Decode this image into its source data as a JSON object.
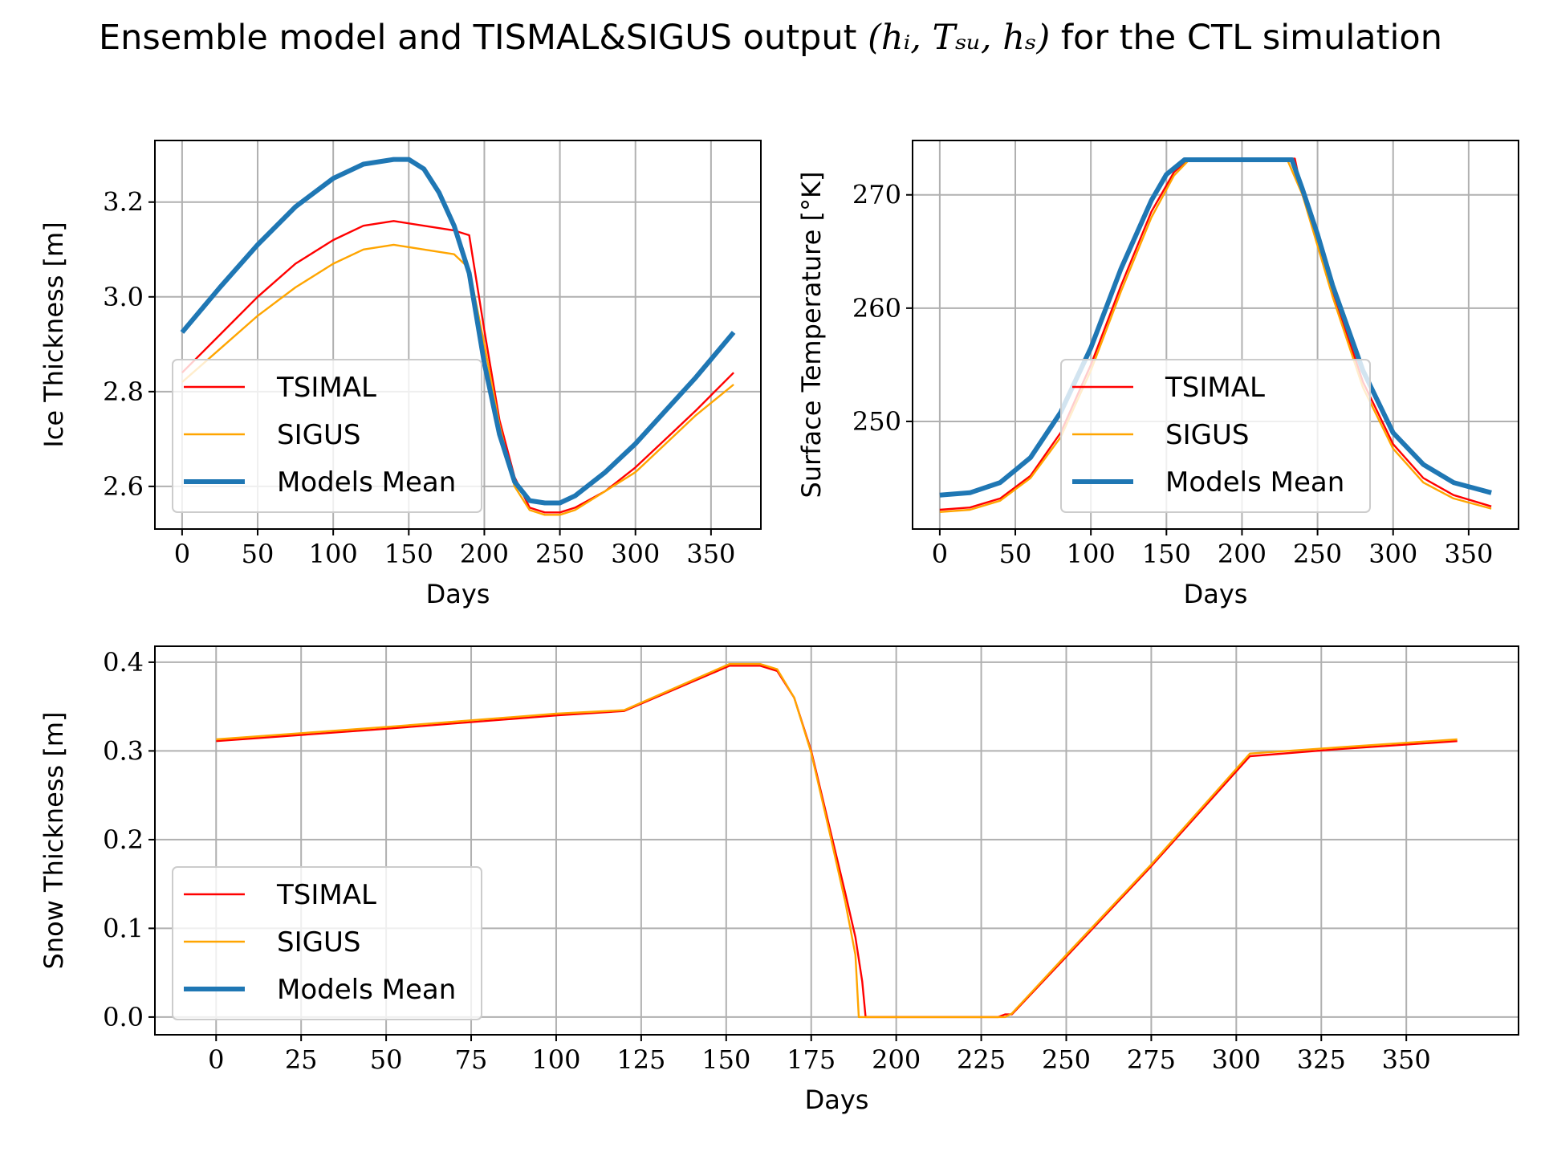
{
  "figure": {
    "title_prefix": "Ensemble model and TISMAL&SIGUS output ",
    "title_math": "(h",
    "title_full_math": "(hᵢ, Tₛᵤ, hₛ)",
    "title_suffix": " for the CTL simulation"
  },
  "colors": {
    "TSIMAL": "#ff0000",
    "SIGUS": "#ffa500",
    "Models Mean": "#1f77b4",
    "grid": "#b0b0b0"
  },
  "legend_labels": [
    "TSIMAL",
    "SIGUS",
    "Models Mean"
  ],
  "chart_data": [
    {
      "type": "line",
      "id": "ice",
      "xlabel": "Days",
      "ylabel": "Ice Thickness [m]",
      "xlim": [
        -18,
        383
      ],
      "ylim": [
        2.51,
        3.33
      ],
      "xticks": [
        0,
        50,
        100,
        150,
        200,
        250,
        300,
        350
      ],
      "yticks": [
        2.6,
        2.8,
        3.0,
        3.2
      ],
      "ytick_labels": [
        "2.6",
        "2.8",
        "3.0",
        "3.2"
      ],
      "grid": true,
      "legend_position": "lower left",
      "series": [
        {
          "name": "TSIMAL",
          "x": [
            0,
            25,
            50,
            75,
            100,
            120,
            140,
            160,
            180,
            190,
            200,
            210,
            220,
            230,
            240,
            250,
            260,
            280,
            300,
            320,
            340,
            365
          ],
          "y": [
            2.84,
            2.92,
            3.0,
            3.07,
            3.12,
            3.15,
            3.16,
            3.15,
            3.14,
            3.13,
            2.93,
            2.74,
            2.62,
            2.555,
            2.545,
            2.545,
            2.555,
            2.59,
            2.64,
            2.7,
            2.76,
            2.84
          ]
        },
        {
          "name": "SIGUS",
          "x": [
            0,
            25,
            50,
            75,
            100,
            120,
            140,
            160,
            180,
            190,
            200,
            210,
            220,
            230,
            240,
            250,
            260,
            280,
            300,
            320,
            340,
            365
          ],
          "y": [
            2.82,
            2.89,
            2.96,
            3.02,
            3.07,
            3.1,
            3.11,
            3.1,
            3.09,
            3.06,
            2.9,
            2.73,
            2.6,
            2.55,
            2.54,
            2.54,
            2.55,
            2.59,
            2.63,
            2.69,
            2.75,
            2.815
          ]
        },
        {
          "name": "Models Mean",
          "x": [
            0,
            25,
            50,
            75,
            100,
            120,
            140,
            150,
            160,
            170,
            180,
            190,
            200,
            210,
            220,
            230,
            240,
            250,
            260,
            280,
            300,
            320,
            340,
            365
          ],
          "y": [
            2.925,
            3.02,
            3.11,
            3.19,
            3.25,
            3.28,
            3.29,
            3.29,
            3.27,
            3.22,
            3.15,
            3.05,
            2.86,
            2.71,
            2.61,
            2.57,
            2.565,
            2.565,
            2.58,
            2.63,
            2.69,
            2.76,
            2.83,
            2.925
          ]
        }
      ]
    },
    {
      "type": "line",
      "id": "temp",
      "xlabel": "Days",
      "ylabel": "Surface Temperature [°K]",
      "xlim": [
        -18,
        383
      ],
      "ylim": [
        240.5,
        274.8
      ],
      "xticks": [
        0,
        50,
        100,
        150,
        200,
        250,
        300,
        350
      ],
      "yticks": [
        250,
        260,
        270
      ],
      "ytick_labels": [
        "250",
        "260",
        "270"
      ],
      "grid": true,
      "legend_position": "lower right",
      "series": [
        {
          "name": "TSIMAL",
          "x": [
            0,
            20,
            40,
            60,
            80,
            100,
            120,
            140,
            155,
            165,
            200,
            235,
            240,
            250,
            260,
            280,
            300,
            320,
            340,
            365
          ],
          "y": [
            242.2,
            242.4,
            243.2,
            245.2,
            249.0,
            255.0,
            262.0,
            268.5,
            272.0,
            273.2,
            273.2,
            273.2,
            270.0,
            266.0,
            261.5,
            253.5,
            248.0,
            245.0,
            243.5,
            242.5
          ]
        },
        {
          "name": "SIGUS",
          "x": [
            0,
            20,
            40,
            60,
            80,
            100,
            120,
            140,
            155,
            165,
            200,
            230,
            240,
            250,
            260,
            280,
            300,
            320,
            340,
            365
          ],
          "y": [
            242.0,
            242.2,
            243.0,
            245.0,
            248.6,
            254.5,
            261.5,
            268.0,
            271.7,
            273.1,
            273.1,
            273.1,
            270.0,
            265.5,
            261.0,
            253.0,
            247.6,
            244.6,
            243.2,
            242.3
          ]
        },
        {
          "name": "Models Mean",
          "x": [
            0,
            20,
            40,
            60,
            80,
            100,
            120,
            140,
            150,
            162,
            200,
            233,
            240,
            250,
            260,
            280,
            300,
            320,
            340,
            365
          ],
          "y": [
            243.5,
            243.7,
            244.6,
            246.8,
            250.8,
            256.5,
            263.5,
            269.5,
            271.8,
            273.1,
            273.1,
            273.1,
            270.5,
            266.5,
            262.0,
            254.5,
            249.0,
            246.2,
            244.6,
            243.7
          ]
        }
      ]
    },
    {
      "type": "line",
      "id": "snow",
      "xlabel": "Days",
      "ylabel": "Snow Thickness [m]",
      "xlim": [
        -18,
        383
      ],
      "ylim": [
        -0.02,
        0.418
      ],
      "xticks": [
        0,
        25,
        50,
        75,
        100,
        125,
        150,
        175,
        200,
        225,
        250,
        275,
        300,
        325,
        350
      ],
      "yticks": [
        0.0,
        0.1,
        0.2,
        0.3,
        0.4
      ],
      "ytick_labels": [
        "0.0",
        "0.1",
        "0.2",
        "0.3",
        "0.4"
      ],
      "grid": true,
      "legend_position": "lower left",
      "series": [
        {
          "name": "TSIMAL",
          "x": [
            0,
            50,
            100,
            120,
            151,
            160,
            165,
            170,
            175,
            180,
            185,
            188,
            190,
            191,
            200,
            230,
            232,
            234,
            250,
            275,
            304,
            330,
            365
          ],
          "y": [
            0.311,
            0.325,
            0.34,
            0.345,
            0.396,
            0.396,
            0.39,
            0.36,
            0.3,
            0.22,
            0.14,
            0.09,
            0.04,
            0.0,
            0.0,
            0.0,
            0.003,
            0.003,
            0.068,
            0.17,
            0.294,
            0.302,
            0.311
          ]
        },
        {
          "name": "SIGUS",
          "x": [
            0,
            50,
            100,
            120,
            151,
            160,
            165,
            170,
            175,
            180,
            185,
            188,
            189,
            200,
            230,
            232,
            234,
            250,
            275,
            304,
            330,
            365
          ],
          "y": [
            0.313,
            0.327,
            0.342,
            0.346,
            0.398,
            0.398,
            0.392,
            0.36,
            0.298,
            0.215,
            0.13,
            0.07,
            0.0,
            0.0,
            0.0,
            0.0,
            0.004,
            0.07,
            0.172,
            0.297,
            0.304,
            0.313
          ]
        }
      ]
    }
  ]
}
